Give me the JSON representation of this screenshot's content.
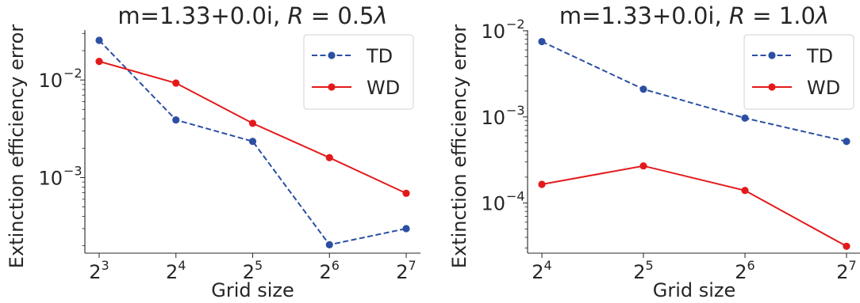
{
  "chart_data": [
    {
      "type": "line",
      "title": "m=1.33+0.0i, R = 0.5λ",
      "title_parts": {
        "prefix": "m=1.33+0.0i, ",
        "var": "R",
        "suffix": " = 0.5",
        "lambda": "λ"
      },
      "xlabel": "Grid size",
      "ylabel": "Extinction efficiency error",
      "x_scale": "log2",
      "y_scale": "log",
      "x": [
        8,
        16,
        32,
        64,
        128
      ],
      "x_tick_labels": [
        {
          "base": "2",
          "exp": "3"
        },
        {
          "base": "2",
          "exp": "4"
        },
        {
          "base": "2",
          "exp": "5"
        },
        {
          "base": "2",
          "exp": "6"
        },
        {
          "base": "2",
          "exp": "7"
        }
      ],
      "y_ticks": [
        {
          "value": 0.001,
          "base": "10",
          "exp": "−3"
        },
        {
          "value": 0.01,
          "base": "10",
          "exp": "−2"
        }
      ],
      "ylim": [
        0.000168,
        0.0325
      ],
      "legend_position": "top-right",
      "grid": false,
      "series": [
        {
          "name": "TD",
          "color": "#2b4fa3",
          "style": "dashed",
          "marker": "circle",
          "values": [
            0.0255,
            0.0039,
            0.00235,
            0.000205,
            0.0003
          ]
        },
        {
          "name": "WD",
          "color": "#e31a1c",
          "style": "solid",
          "marker": "circle",
          "values": [
            0.0155,
            0.0093,
            0.0036,
            0.0016,
            0.00069
          ]
        }
      ]
    },
    {
      "type": "line",
      "title": "m=1.33+0.0i, R = 1.0λ",
      "title_parts": {
        "prefix": "m=1.33+0.0i, ",
        "var": "R",
        "suffix": " = 1.0",
        "lambda": "λ"
      },
      "xlabel": "Grid size",
      "ylabel": "Extinction efficiency error",
      "x_scale": "log2",
      "y_scale": "log",
      "x": [
        16,
        32,
        64,
        128
      ],
      "x_tick_labels": [
        {
          "base": "2",
          "exp": "4"
        },
        {
          "base": "2",
          "exp": "5"
        },
        {
          "base": "2",
          "exp": "6"
        },
        {
          "base": "2",
          "exp": "7"
        }
      ],
      "y_ticks": [
        {
          "value": 0.0001,
          "base": "10",
          "exp": "−4"
        },
        {
          "value": 0.001,
          "base": "10",
          "exp": "−3"
        },
        {
          "value": 0.01,
          "base": "10",
          "exp": "−2"
        }
      ],
      "ylim": [
        2.62e-05,
        0.0102
      ],
      "legend_position": "top-right",
      "grid": false,
      "series": [
        {
          "name": "TD",
          "color": "#2b4fa3",
          "style": "dashed",
          "marker": "circle",
          "values": [
            0.0075,
            0.0021,
            0.00097,
            0.00052
          ]
        },
        {
          "name": "WD",
          "color": "#e31a1c",
          "style": "solid",
          "marker": "circle",
          "values": [
            0.000165,
            0.00027,
            0.00014,
            3.15e-05
          ]
        }
      ]
    }
  ]
}
